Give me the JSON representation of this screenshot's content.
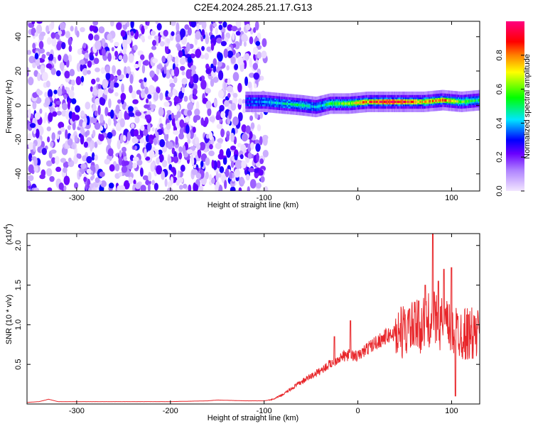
{
  "title": "C2E4.2024.285.21.17.G13",
  "chart_data": [
    {
      "type": "heatmap",
      "xlabel": "Height of straight line (km)",
      "ylabel": "Frequency (Hz)",
      "xlim": [
        -353,
        130
      ],
      "ylim": [
        -50,
        49
      ],
      "xticks": [
        -300,
        -200,
        -100,
        0,
        100
      ],
      "xtick_labels": [
        "-300",
        "-200",
        "-100",
        "0",
        "100"
      ],
      "yticks": [
        -40,
        -20,
        0,
        20,
        40
      ],
      "ytick_labels": [
        "-40",
        "-20",
        "0",
        "20",
        "40"
      ],
      "colorbar": {
        "label": "Normalized spectral amplitude",
        "range": [
          0,
          1
        ],
        "ticks": [
          0.0,
          0.2,
          0.4,
          0.6,
          0.8
        ],
        "tick_labels": [
          "0.0",
          "0.2",
          "0.4",
          "0.6",
          "0.8"
        ],
        "colors": [
          "#f2e6ff",
          "#8a2be2",
          "#0000ff",
          "#00e5ff",
          "#00ff00",
          "#ffff00",
          "#ff8000",
          "#ff0000",
          "#ff0080"
        ]
      },
      "noise_region_x": [
        -353,
        -98
      ],
      "signal_band": {
        "x": [
          -120,
          -100,
          -80,
          -60,
          -45,
          -30,
          -10,
          10,
          30,
          50,
          70,
          90,
          110,
          130
        ],
        "center_y": [
          2,
          2,
          1,
          0,
          -1,
          1,
          1,
          2,
          2,
          2,
          2,
          3,
          2,
          3
        ],
        "peak_amplitude": [
          0.3,
          0.4,
          0.45,
          0.5,
          0.4,
          0.55,
          0.6,
          0.8,
          0.95,
          0.9,
          0.7,
          0.85,
          0.6,
          0.5
        ]
      }
    },
    {
      "type": "line",
      "xlabel": "Height of straight line (km)",
      "ylabel": "SNR (10 * v/v)",
      "y_multiplier": "(x10",
      "y_exponent": "4",
      "xlim": [
        -353,
        130
      ],
      "ylim": [
        0,
        2.15
      ],
      "xticks": [
        -300,
        -200,
        -100,
        0,
        100
      ],
      "xtick_labels": [
        "-300",
        "-200",
        "-100",
        "0",
        "100"
      ],
      "yticks": [
        0.5,
        1.0,
        1.5,
        2.0
      ],
      "ytick_labels": [
        "0.5",
        "1.0",
        "1.5",
        "2.0"
      ],
      "color": "#e8262a",
      "series": [
        {
          "x": [
            -353,
            -340,
            -330,
            -320,
            -300,
            -250,
            -200,
            -160,
            -150,
            -120,
            -100,
            -90,
            -80,
            -70,
            -60,
            -50,
            -40,
            -30,
            -20,
            -10,
            0,
            10,
            20,
            30,
            40,
            50,
            60,
            70,
            80,
            90,
            100,
            110,
            120,
            130
          ],
          "y": [
            0.02,
            0.03,
            0.06,
            0.03,
            0.03,
            0.03,
            0.03,
            0.04,
            0.05,
            0.04,
            0.04,
            0.06,
            0.12,
            0.2,
            0.28,
            0.35,
            0.42,
            0.5,
            0.58,
            0.62,
            0.6,
            0.7,
            0.78,
            0.85,
            0.9,
            0.92,
            0.95,
            1.0,
            1.1,
            1.0,
            0.95,
            0.9,
            0.88,
            0.86
          ],
          "spikes": [
            {
              "x": -8,
              "y": 1.05
            },
            {
              "x": -25,
              "y": 0.85
            },
            {
              "x": 55,
              "y": 1.2
            },
            {
              "x": 65,
              "y": 1.3
            },
            {
              "x": 72,
              "y": 1.5
            },
            {
              "x": 80,
              "y": 2.15
            },
            {
              "x": 86,
              "y": 1.55
            },
            {
              "x": 92,
              "y": 1.7
            },
            {
              "x": 100,
              "y": 1.72
            },
            {
              "x": 104,
              "y": 0.1
            }
          ]
        }
      ]
    }
  ]
}
